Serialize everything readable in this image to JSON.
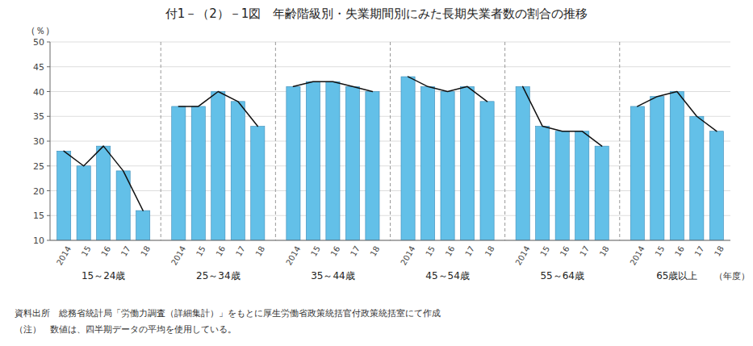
{
  "chart_data": {
    "type": "bar",
    "title": "付1－（2）－1図　年齢階級別・失業期間別にみた長期失業者数の割合の推移",
    "ylabel": "（％）",
    "xlabel": "（年度）",
    "categories": [
      "2014",
      "15",
      "16",
      "17",
      "18"
    ],
    "groups": [
      {
        "label": "15～24歳",
        "series": [
          {
            "type": "bar",
            "color": "#63C0E8",
            "values": [
              28,
              25,
              29,
              24,
              16
            ]
          },
          {
            "type": "line",
            "color": "#111111",
            "values": [
              28,
              25,
              29,
              24,
              16
            ]
          }
        ]
      },
      {
        "label": "25～34歳",
        "series": [
          {
            "type": "bar",
            "color": "#63C0E8",
            "values": [
              37,
              37,
              40,
              38,
              33
            ]
          },
          {
            "type": "line",
            "color": "#111111",
            "values": [
              37,
              37,
              40,
              38,
              33
            ]
          }
        ]
      },
      {
        "label": "35～44歳",
        "series": [
          {
            "type": "bar",
            "color": "#63C0E8",
            "values": [
              41,
              42,
              42,
              41,
              40
            ]
          },
          {
            "type": "line",
            "color": "#111111",
            "values": [
              41,
              42,
              42,
              41,
              40
            ]
          }
        ]
      },
      {
        "label": "45～54歳",
        "series": [
          {
            "type": "bar",
            "color": "#63C0E8",
            "values": [
              43,
              41,
              40,
              41,
              38
            ]
          },
          {
            "type": "line",
            "color": "#111111",
            "values": [
              43,
              41,
              40,
              41,
              38
            ]
          }
        ]
      },
      {
        "label": "55～64歳",
        "series": [
          {
            "type": "bar",
            "color": "#63C0E8",
            "values": [
              41,
              33,
              32,
              32,
              29
            ]
          },
          {
            "type": "line",
            "color": "#111111",
            "values": [
              41,
              33,
              32,
              32,
              29
            ]
          }
        ]
      },
      {
        "label": "65歳以上",
        "series": [
          {
            "type": "bar",
            "color": "#63C0E8",
            "values": [
              37,
              39,
              40,
              35,
              32
            ]
          },
          {
            "type": "line",
            "color": "#111111",
            "values": [
              37,
              39,
              40,
              35,
              32
            ]
          }
        ]
      }
    ],
    "ylim": [
      10,
      50
    ],
    "yticks": [
      10,
      15,
      20,
      25,
      30,
      35,
      40,
      45,
      50
    ],
    "grid": true,
    "footnotes": [
      "資料出所　総務省統計局「労働力調査（詳細集計）」をもとに厚生労働省政策統括官付政策統括室にて作成",
      "（注）　数値は、四半期データの平均を使用している。"
    ]
  }
}
